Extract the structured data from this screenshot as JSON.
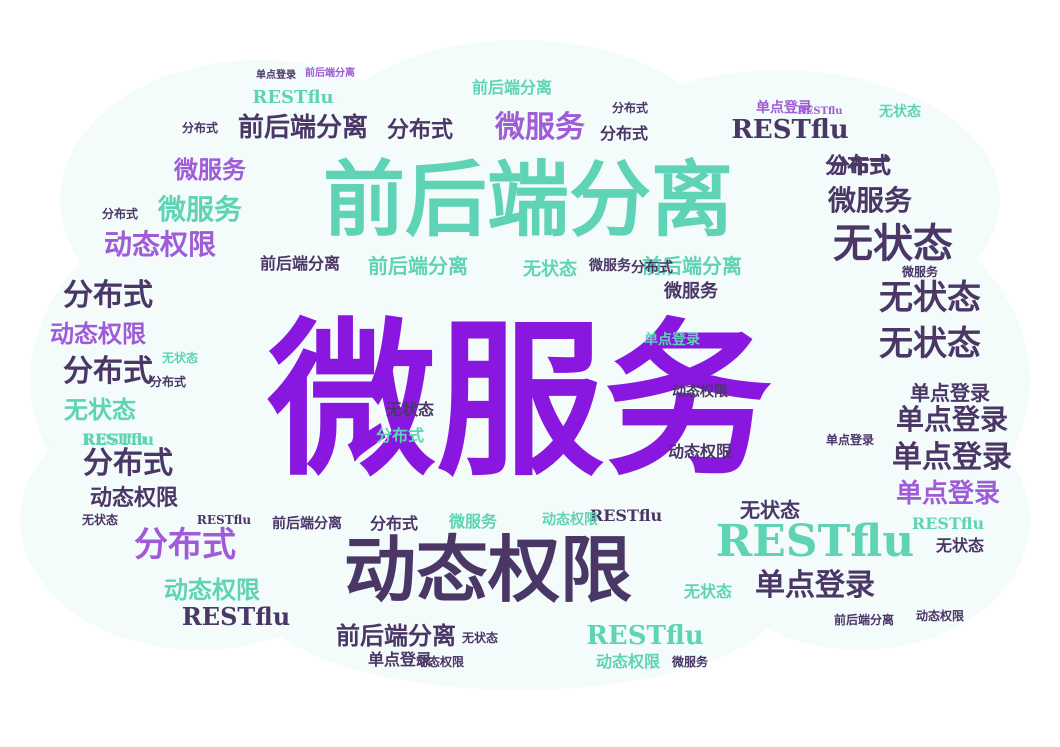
{
  "palette": {
    "purple": "#8a17e0",
    "teal": "#5fd3b5",
    "dark": "#4b3766",
    "violet": "#a05cd8",
    "cloud": "#f3fbfb"
  },
  "words": {
    "w01": "微服务",
    "w02": "前后端分离",
    "w03": "动态权限",
    "w04": "RESTflu",
    "w05": "无状态",
    "w06": "分布式",
    "w07": "单点登录",
    "w08": "微服务",
    "w09": "前后端分离",
    "w10": "微服务",
    "w11": "微服务",
    "w12": "微服务",
    "w13": "动态权限",
    "w14": "分布式",
    "w15": "动态权限",
    "w16": "分布式",
    "w17": "无状态",
    "w18": "分布式",
    "w19": "动态权限",
    "w20": "分布式",
    "w21": "无状态",
    "w22": "无状态",
    "w23": "无状态",
    "w24": "分布式",
    "w25": "单点登录",
    "w26": "单点登录",
    "w27": "单点登录",
    "w28": "单点登录",
    "w29": "RESTflu",
    "w30": "RESTflu",
    "w31": "前后端分离",
    "w32": "前后端分离",
    "w33": "前后端分离",
    "w34": "动态权限",
    "w35": "RESTflu",
    "w36": "分布式",
    "w37": "RESTflu",
    "w38": "微服务",
    "w39": "RESTflu",
    "w40": "前后端分离",
    "w41": "分布式",
    "w42": "单点登录",
    "w43": "动态权限",
    "w44": "微服务",
    "w45": "无状态",
    "w46": "无状态",
    "w47": "RESTflu",
    "w48": "分布式",
    "w49": "动态权限",
    "w50": "无状态",
    "w51": "无状态",
    "w52": "RESTflu",
    "w53": "无状态",
    "w54": "单点登录",
    "w55": "RESTflu",
    "w56": "前后端分离",
    "w57": "前后端分离",
    "w58": "分布式",
    "w59": "动态权限",
    "w60": "微服务",
    "w61": "单点登录",
    "w62": "动态权限",
    "w63": "分布式",
    "w64": "无状态",
    "w65": "RESTflu",
    "w66": "分布式",
    "w67": "无状态",
    "w68": "动态权限",
    "w69": "单点登录",
    "w70": "微服务",
    "w71": "前后端分离",
    "w72": "分布式",
    "w73": "分布式",
    "w74": "无状态",
    "w75": "动态权限",
    "w76": "单点登录",
    "w77": "RESTflu",
    "w78": "前后端分离",
    "w79": "微服务",
    "w80": "分布式"
  }
}
